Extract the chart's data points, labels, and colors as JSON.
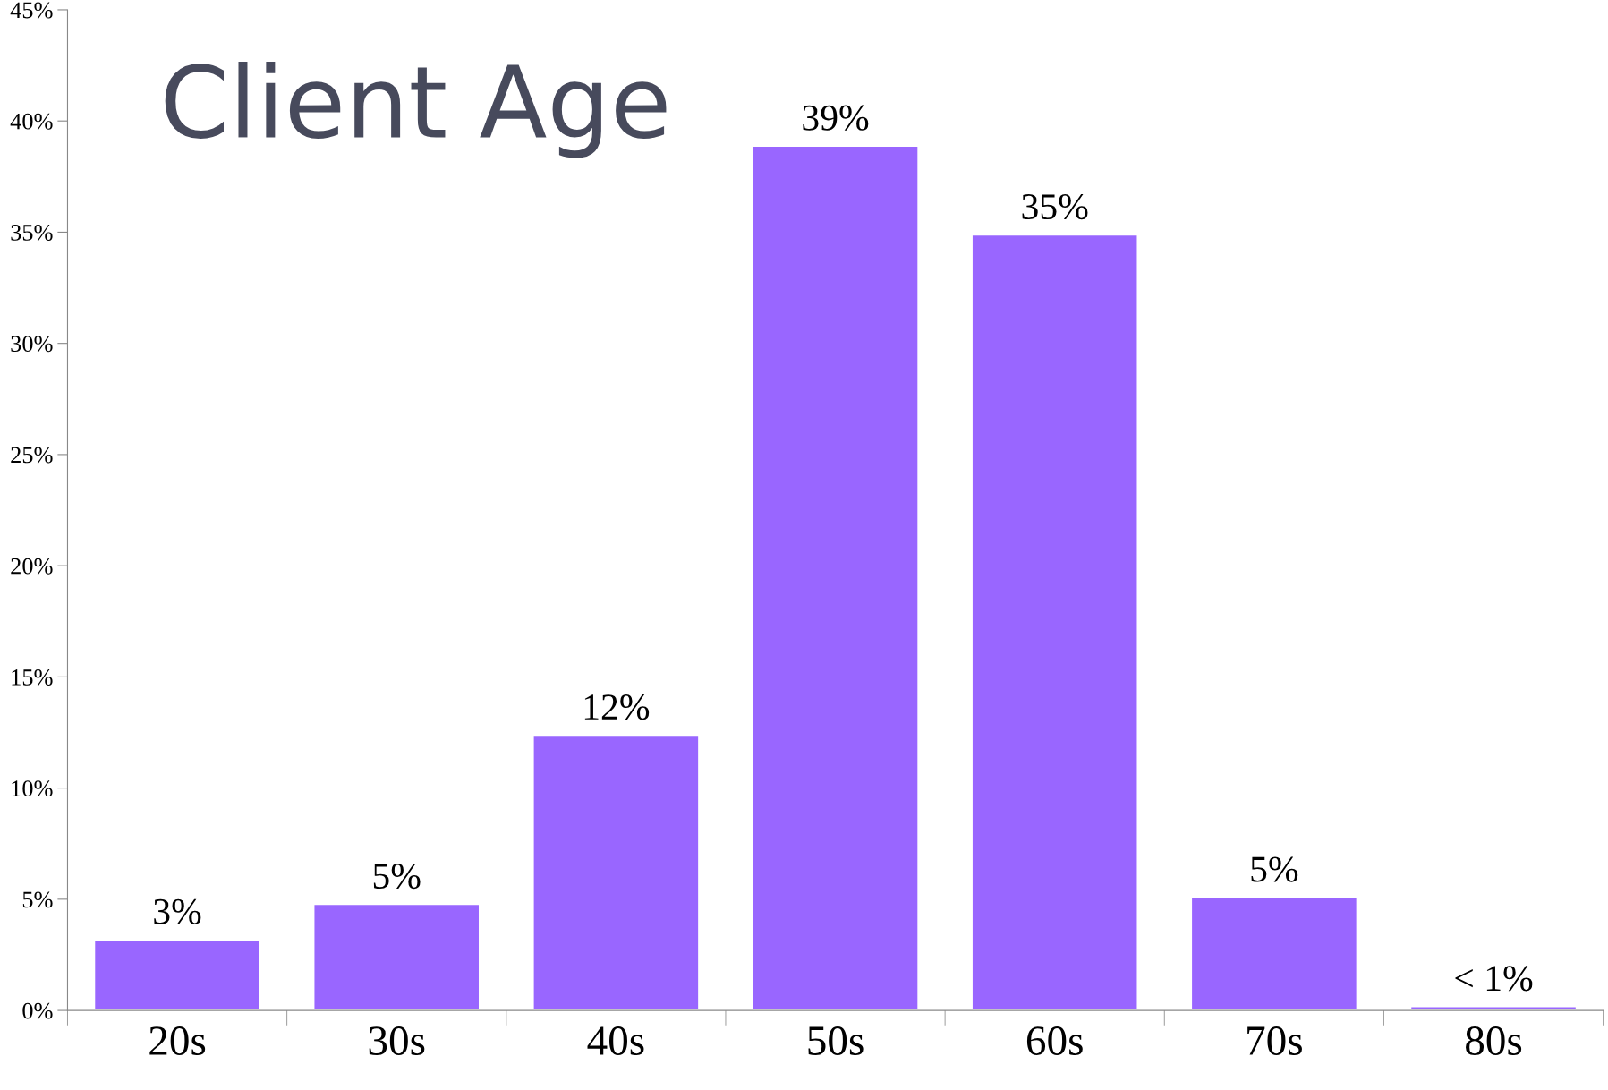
{
  "chart_data": {
    "type": "bar",
    "title": "Client Age",
    "categories": [
      "20s",
      "30s",
      "40s",
      "50s",
      "60s",
      "70s",
      "80s"
    ],
    "values": [
      3.2,
      4.8,
      12.4,
      38.9,
      34.9,
      5.1,
      0.2
    ],
    "value_labels": [
      "3%",
      "5%",
      "12%",
      "39%",
      "35%",
      "5%",
      "< 1%"
    ],
    "color": "#9966ff",
    "ylim": [
      0,
      45
    ],
    "yticks": [
      {
        "value": 0,
        "label": "0%"
      },
      {
        "value": 5,
        "label": "5%"
      },
      {
        "value": 10,
        "label": "10%"
      },
      {
        "value": 15,
        "label": "15%"
      },
      {
        "value": 20,
        "label": "20%"
      },
      {
        "value": 25,
        "label": "25%"
      },
      {
        "value": 30,
        "label": "30%"
      },
      {
        "value": 35,
        "label": "35%"
      },
      {
        "value": 40,
        "label": "40%"
      },
      {
        "value": 45,
        "label": "45%"
      }
    ],
    "grid": false,
    "legend": false
  }
}
